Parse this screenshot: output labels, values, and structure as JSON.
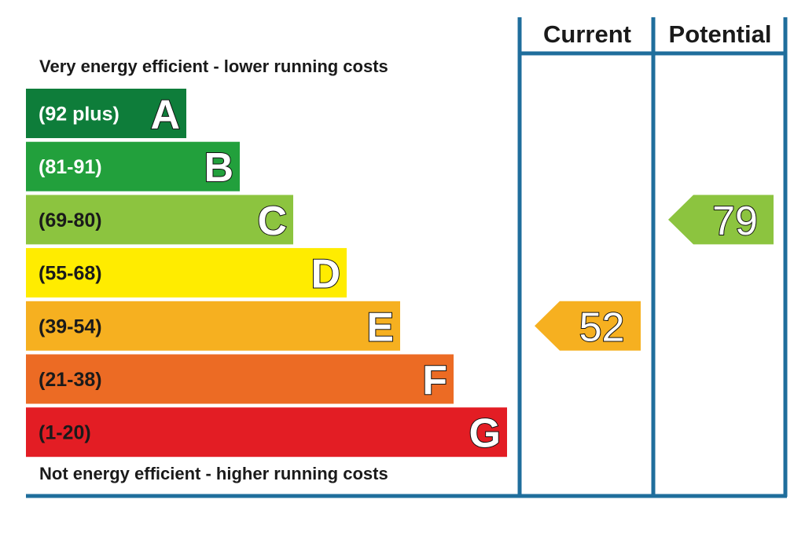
{
  "colors": {
    "frame": "#1f6e9c",
    "text": "#1a1a1a",
    "band_A": "#0e7d3a",
    "band_B": "#22a03c",
    "band_C": "#8cc43f",
    "band_D": "#ffec00",
    "band_E": "#f6b020",
    "band_F": "#ec6b24",
    "band_G": "#e31d24"
  },
  "headers": {
    "current": "Current",
    "potential": "Potential"
  },
  "labels": {
    "top": "Very energy efficient - lower running costs",
    "bottom": "Not energy efficient - higher running costs"
  },
  "chart_data": {
    "type": "bar",
    "bands": [
      {
        "letter": "A",
        "range": "(92 plus)",
        "min": 92,
        "max": null,
        "color": "#0e7d3a",
        "range_text_color": "#ffffff"
      },
      {
        "letter": "B",
        "range": "(81-91)",
        "min": 81,
        "max": 91,
        "color": "#22a03c",
        "range_text_color": "#ffffff"
      },
      {
        "letter": "C",
        "range": "(69-80)",
        "min": 69,
        "max": 80,
        "color": "#8cc43f",
        "range_text_color": "#1a1a1a"
      },
      {
        "letter": "D",
        "range": "(55-68)",
        "min": 55,
        "max": 68,
        "color": "#ffec00",
        "range_text_color": "#1a1a1a"
      },
      {
        "letter": "E",
        "range": "(39-54)",
        "min": 39,
        "max": 54,
        "color": "#f6b020",
        "range_text_color": "#1a1a1a"
      },
      {
        "letter": "F",
        "range": "(21-38)",
        "min": 21,
        "max": 38,
        "color": "#ec6b24",
        "range_text_color": "#1a1a1a"
      },
      {
        "letter": "G",
        "range": "(1-20)",
        "min": 1,
        "max": 20,
        "color": "#e31d24",
        "range_text_color": "#1a1a1a"
      }
    ],
    "ratings": [
      {
        "column": "current",
        "value": "52",
        "band": "E",
        "color": "#f6b020"
      },
      {
        "column": "potential",
        "value": "79",
        "band": "C",
        "color": "#8cc43f"
      }
    ]
  }
}
